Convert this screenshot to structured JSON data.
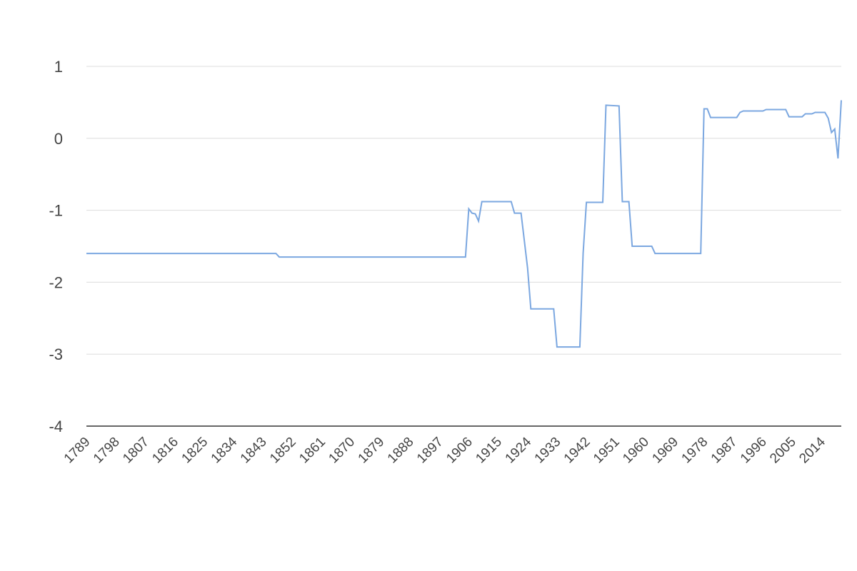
{
  "chart_data": {
    "type": "line",
    "x": [
      1789,
      1847,
      1848,
      1905,
      1906,
      1907,
      1908,
      1909,
      1910,
      1919,
      1920,
      1922,
      1924,
      1925,
      1932,
      1933,
      1940,
      1941,
      1942,
      1947,
      1948,
      1952,
      1953,
      1955,
      1956,
      1962,
      1963,
      1977,
      1978,
      1979,
      1980,
      1988,
      1989,
      1990,
      1996,
      1997,
      2003,
      2004,
      2008,
      2009,
      2011,
      2012,
      2015,
      2016,
      2017,
      2018,
      2019,
      2020
    ],
    "series": [
      {
        "color": "#7ba7e0",
        "values": [
          -1.6,
          -1.6,
          -1.65,
          -1.65,
          -0.98,
          -1.04,
          -1.05,
          -1.15,
          -0.88,
          -0.88,
          -1.04,
          -1.04,
          -1.8,
          -2.37,
          -2.37,
          -2.9,
          -2.9,
          -1.6,
          -0.89,
          -0.89,
          0.46,
          0.45,
          -0.88,
          -0.88,
          -1.5,
          -1.5,
          -1.6,
          -1.6,
          0.41,
          0.41,
          0.29,
          0.29,
          0.36,
          0.38,
          0.38,
          0.4,
          0.4,
          0.3,
          0.3,
          0.34,
          0.34,
          0.36,
          0.36,
          0.28,
          0.08,
          0.13,
          -0.28,
          0.53
        ]
      }
    ],
    "xlim": [
      1789,
      2020
    ],
    "xticks": [
      1789,
      1798,
      1807,
      1816,
      1825,
      1834,
      1843,
      1852,
      1861,
      1870,
      1879,
      1888,
      1897,
      1906,
      1915,
      1924,
      1933,
      1942,
      1951,
      1960,
      1969,
      1978,
      1987,
      1996,
      2005,
      2014
    ],
    "ylim": [
      -4,
      1
    ],
    "yticks": [
      -4,
      -3,
      -2,
      -1,
      0,
      1
    ],
    "grid": true
  }
}
